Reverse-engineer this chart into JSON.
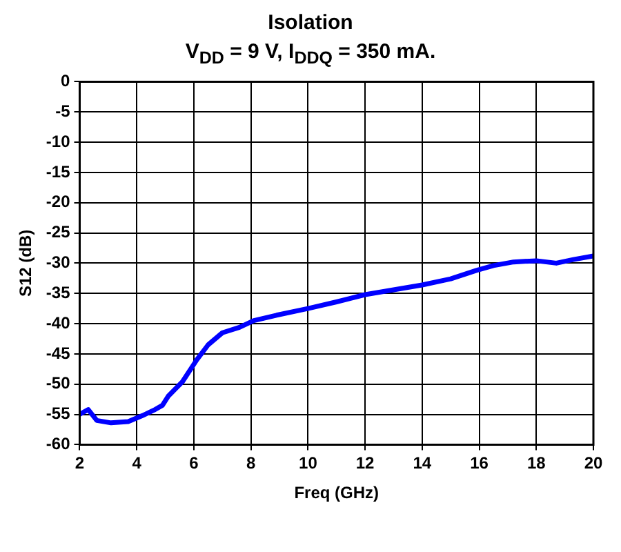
{
  "chart_data": {
    "type": "line",
    "title": "Isolation",
    "subtitle": "V$_{DD}$ = 9 V, I$_{DDQ}$ = 350 mA.",
    "xlabel": "Freq (GHz)",
    "ylabel": "S12 (dB)",
    "x": [
      2,
      2.3,
      2.6,
      3.1,
      3.7,
      4.2,
      4.6,
      4.9,
      5.1,
      5.6,
      6.1,
      6.5,
      7,
      7.6,
      8.1,
      8.9,
      10,
      11,
      12,
      13,
      14,
      15,
      15.9,
      16.5,
      17.2,
      18,
      18.7,
      19.3,
      20
    ],
    "series": [
      {
        "color": "#0000ff",
        "values": [
          -55,
          -54.2,
          -56,
          -56.4,
          -56.2,
          -55.2,
          -54.3,
          -53.5,
          -52,
          -49.6,
          -46,
          -43.5,
          -41.5,
          -40.6,
          -39.5,
          -38.6,
          -37.5,
          -36.4,
          -35.2,
          -34.4,
          -33.6,
          -32.6,
          -31.2,
          -30.4,
          -29.8,
          -29.6,
          -30,
          -29.4,
          -28.8
        ]
      }
    ],
    "xlim": [
      2,
      20
    ],
    "xticks": [
      2,
      4,
      6,
      8,
      10,
      12,
      14,
      16,
      18,
      20
    ],
    "ylim": [
      -60,
      0
    ],
    "yticks": [
      0,
      -5,
      -10,
      -15,
      -20,
      -25,
      -30,
      -35,
      -40,
      -45,
      -50,
      -55,
      -60
    ],
    "grid": true,
    "legend": false,
    "marker": "none",
    "line_style": "solid"
  }
}
